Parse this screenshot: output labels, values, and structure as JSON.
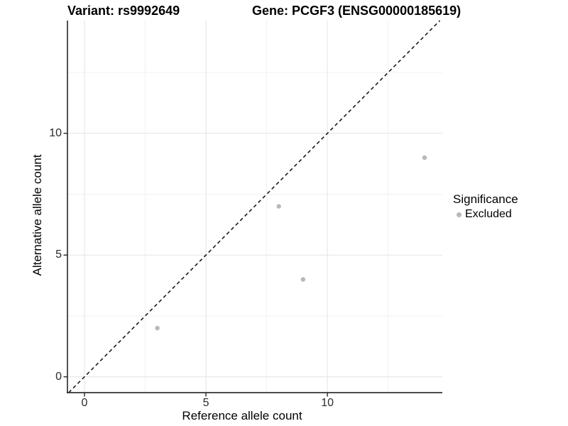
{
  "chart_data": {
    "type": "scatter",
    "title_left": "Variant: rs9992649",
    "title_right": "Gene: PCGF3 (ENSG00000185619)",
    "xlabel": "Reference allele count",
    "ylabel": "Alternative allele count",
    "xlim": [
      -0.7,
      14.73
    ],
    "ylim": [
      -0.65,
      14.63
    ],
    "x_ticks": [
      0,
      5,
      10
    ],
    "y_ticks": [
      0,
      5,
      10
    ],
    "x_minor_gridlines": [
      2.5,
      7.5,
      12.5
    ],
    "y_minor_gridlines": [
      2.5,
      7.5,
      12.5
    ],
    "grid": true,
    "legend_position": "right",
    "identity_line": {
      "style": "dashed",
      "slope": 1,
      "intercept": 0,
      "color": "#1a1a1a"
    },
    "series": [
      {
        "name": "Excluded",
        "color": "#b8b8b8",
        "points": [
          {
            "x": 3,
            "y": 2
          },
          {
            "x": 8,
            "y": 7
          },
          {
            "x": 9,
            "y": 4
          },
          {
            "x": 14,
            "y": 9
          }
        ]
      }
    ],
    "legend": {
      "title": "Significance",
      "items": [
        {
          "label": "Excluded",
          "color": "#b8b8b8"
        }
      ]
    },
    "colors": {
      "axis": "#333333",
      "tick_text": "#2b2b2b",
      "grid_major": "#e6e6e6",
      "grid_minor": "#f1f1f1",
      "background": "#ffffff"
    }
  }
}
